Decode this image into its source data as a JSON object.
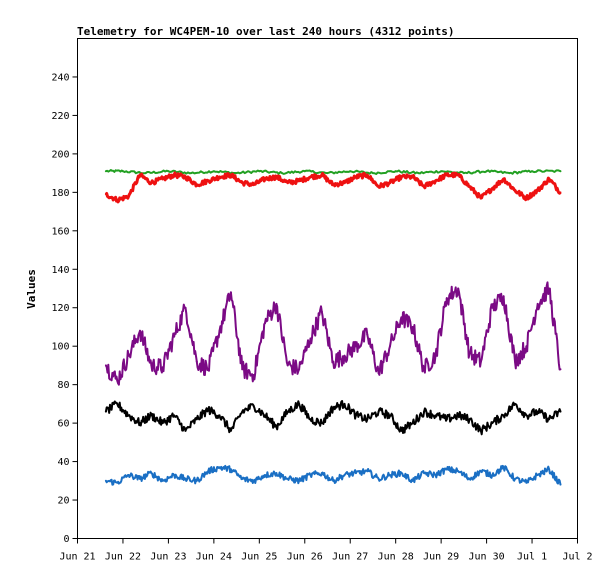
{
  "chart_data": {
    "type": "line",
    "title": "Telemetry for WC4PEM-10 over last 240 hours (4312 points)",
    "xlabel": "",
    "ylabel": "Values",
    "xlim": [
      "2024-06-21",
      "2024-07-02"
    ],
    "ylim": [
      0,
      260
    ],
    "grid": false,
    "legend": "none",
    "x_tick_labels": [
      "Jun 21",
      "Jun 22",
      "Jun 23",
      "Jun 24",
      "Jun 25",
      "Jun 26",
      "Jun 27",
      "Jun 28",
      "Jun 29",
      "Jun 30",
      "Jul 1",
      "Jul 2"
    ],
    "y_ticks": [
      0,
      20,
      40,
      60,
      80,
      100,
      120,
      140,
      160,
      180,
      200,
      220,
      240
    ],
    "series": [
      {
        "color": "#22a022",
        "x": [
          "2024-06-21 15:00",
          "2024-06-22 00:00",
          "2024-06-22 12:00",
          "2024-06-23 00:00",
          "2024-06-23 12:00",
          "2024-06-24 00:00",
          "2024-06-24 12:00",
          "2024-06-25 00:00",
          "2024-06-25 12:00",
          "2024-06-26 00:00",
          "2024-06-26 12:00",
          "2024-06-27 00:00",
          "2024-06-27 12:00",
          "2024-06-28 00:00",
          "2024-06-28 12:00",
          "2024-06-29 00:00",
          "2024-06-29 12:00",
          "2024-06-30 00:00",
          "2024-06-30 12:00",
          "2024-07-01 00:00",
          "2024-07-01 15:00"
        ],
        "values": [
          191,
          191,
          190,
          191,
          190,
          191,
          190,
          191,
          190,
          191,
          190,
          191,
          190,
          191,
          190,
          191,
          190,
          191,
          190,
          191,
          191
        ]
      },
      {
        "color": "#ee1111",
        "x": [
          "2024-06-21 15:00",
          "2024-06-21 21:00",
          "2024-06-22 03:00",
          "2024-06-22 09:00",
          "2024-06-22 15:00",
          "2024-06-22 21:00",
          "2024-06-23 03:00",
          "2024-06-23 09:00",
          "2024-06-23 15:00",
          "2024-06-23 21:00",
          "2024-06-24 03:00",
          "2024-06-24 09:00",
          "2024-06-24 15:00",
          "2024-06-24 21:00",
          "2024-06-25 03:00",
          "2024-06-25 09:00",
          "2024-06-25 15:00",
          "2024-06-25 21:00",
          "2024-06-26 03:00",
          "2024-06-26 09:00",
          "2024-06-26 15:00",
          "2024-06-26 21:00",
          "2024-06-27 03:00",
          "2024-06-27 09:00",
          "2024-06-27 15:00",
          "2024-06-27 21:00",
          "2024-06-28 03:00",
          "2024-06-28 09:00",
          "2024-06-28 15:00",
          "2024-06-28 21:00",
          "2024-06-29 03:00",
          "2024-06-29 09:00",
          "2024-06-29 15:00",
          "2024-06-29 21:00",
          "2024-06-30 03:00",
          "2024-06-30 09:00",
          "2024-06-30 15:00",
          "2024-06-30 21:00",
          "2024-07-01 03:00",
          "2024-07-01 09:00",
          "2024-07-01 15:00"
        ],
        "values": [
          179,
          176,
          178,
          189,
          185,
          187,
          189,
          188,
          184,
          186,
          188,
          189,
          185,
          184,
          187,
          188,
          185,
          186,
          188,
          189,
          184,
          185,
          188,
          189,
          183,
          185,
          188,
          188,
          183,
          186,
          189,
          189,
          183,
          177,
          182,
          187,
          181,
          177,
          181,
          187,
          180
        ]
      },
      {
        "color": "#7b0a85",
        "x": [
          "2024-06-21 15:00",
          "2024-06-21 21:00",
          "2024-06-22 03:00",
          "2024-06-22 09:00",
          "2024-06-22 15:00",
          "2024-06-22 21:00",
          "2024-06-23 03:00",
          "2024-06-23 09:00",
          "2024-06-23 15:00",
          "2024-06-23 21:00",
          "2024-06-24 03:00",
          "2024-06-24 09:00",
          "2024-06-24 15:00",
          "2024-06-24 21:00",
          "2024-06-25 03:00",
          "2024-06-25 09:00",
          "2024-06-25 15:00",
          "2024-06-25 21:00",
          "2024-06-26 03:00",
          "2024-06-26 09:00",
          "2024-06-26 15:00",
          "2024-06-26 21:00",
          "2024-06-27 03:00",
          "2024-06-27 09:00",
          "2024-06-27 15:00",
          "2024-06-27 21:00",
          "2024-06-28 03:00",
          "2024-06-28 09:00",
          "2024-06-28 15:00",
          "2024-06-28 21:00",
          "2024-06-29 03:00",
          "2024-06-29 09:00",
          "2024-06-29 15:00",
          "2024-06-29 21:00",
          "2024-06-30 03:00",
          "2024-06-30 09:00",
          "2024-06-30 15:00",
          "2024-06-30 21:00",
          "2024-07-01 03:00",
          "2024-07-01 09:00",
          "2024-07-01 15:00"
        ],
        "values": [
          90,
          82,
          95,
          108,
          90,
          89,
          105,
          120,
          92,
          88,
          108,
          128,
          88,
          85,
          112,
          122,
          90,
          88,
          104,
          118,
          92,
          95,
          100,
          106,
          86,
          100,
          115,
          110,
          88,
          95,
          125,
          130,
          96,
          92,
          120,
          126,
          92,
          100,
          122,
          130,
          88
        ]
      },
      {
        "color": "#000000",
        "x": [
          "2024-06-21 15:00",
          "2024-06-21 21:00",
          "2024-06-22 03:00",
          "2024-06-22 09:00",
          "2024-06-22 15:00",
          "2024-06-22 21:00",
          "2024-06-23 03:00",
          "2024-06-23 09:00",
          "2024-06-23 15:00",
          "2024-06-23 21:00",
          "2024-06-24 03:00",
          "2024-06-24 09:00",
          "2024-06-24 15:00",
          "2024-06-24 21:00",
          "2024-06-25 03:00",
          "2024-06-25 09:00",
          "2024-06-25 15:00",
          "2024-06-25 21:00",
          "2024-06-26 03:00",
          "2024-06-26 09:00",
          "2024-06-26 15:00",
          "2024-06-26 21:00",
          "2024-06-27 03:00",
          "2024-06-27 09:00",
          "2024-06-27 15:00",
          "2024-06-27 21:00",
          "2024-06-28 03:00",
          "2024-06-28 09:00",
          "2024-06-28 15:00",
          "2024-06-28 21:00",
          "2024-06-29 03:00",
          "2024-06-29 09:00",
          "2024-06-29 15:00",
          "2024-06-29 21:00",
          "2024-06-30 03:00",
          "2024-06-30 09:00",
          "2024-06-30 15:00",
          "2024-06-30 21:00",
          "2024-07-01 03:00",
          "2024-07-01 09:00",
          "2024-07-01 15:00"
        ],
        "values": [
          66,
          70,
          64,
          60,
          64,
          60,
          64,
          56,
          62,
          67,
          64,
          56,
          66,
          69,
          64,
          58,
          66,
          70,
          62,
          60,
          68,
          70,
          64,
          62,
          66,
          64,
          56,
          60,
          66,
          64,
          62,
          64,
          62,
          56,
          60,
          64,
          70,
          64,
          66,
          62,
          66
        ]
      },
      {
        "color": "#1a6fc4",
        "x": [
          "2024-06-21 15:00",
          "2024-06-21 21:00",
          "2024-06-22 03:00",
          "2024-06-22 09:00",
          "2024-06-22 15:00",
          "2024-06-22 21:00",
          "2024-06-23 03:00",
          "2024-06-23 09:00",
          "2024-06-23 15:00",
          "2024-06-23 21:00",
          "2024-06-24 03:00",
          "2024-06-24 09:00",
          "2024-06-24 15:00",
          "2024-06-24 21:00",
          "2024-06-25 03:00",
          "2024-06-25 09:00",
          "2024-06-25 15:00",
          "2024-06-25 21:00",
          "2024-06-26 03:00",
          "2024-06-26 09:00",
          "2024-06-26 15:00",
          "2024-06-26 21:00",
          "2024-06-27 03:00",
          "2024-06-27 09:00",
          "2024-06-27 15:00",
          "2024-06-27 21:00",
          "2024-06-28 03:00",
          "2024-06-28 09:00",
          "2024-06-28 15:00",
          "2024-06-28 21:00",
          "2024-06-29 03:00",
          "2024-06-29 09:00",
          "2024-06-29 15:00",
          "2024-06-29 21:00",
          "2024-06-30 03:00",
          "2024-06-30 09:00",
          "2024-06-30 15:00",
          "2024-06-30 21:00",
          "2024-07-01 03:00",
          "2024-07-01 09:00",
          "2024-07-01 15:00"
        ],
        "values": [
          30,
          29,
          33,
          31,
          34,
          30,
          33,
          31,
          30,
          35,
          37,
          36,
          31,
          30,
          33,
          34,
          31,
          30,
          33,
          34,
          30,
          33,
          34,
          35,
          31,
          33,
          34,
          30,
          34,
          33,
          36,
          35,
          31,
          35,
          33,
          37,
          31,
          29,
          33,
          36,
          28
        ]
      }
    ]
  }
}
